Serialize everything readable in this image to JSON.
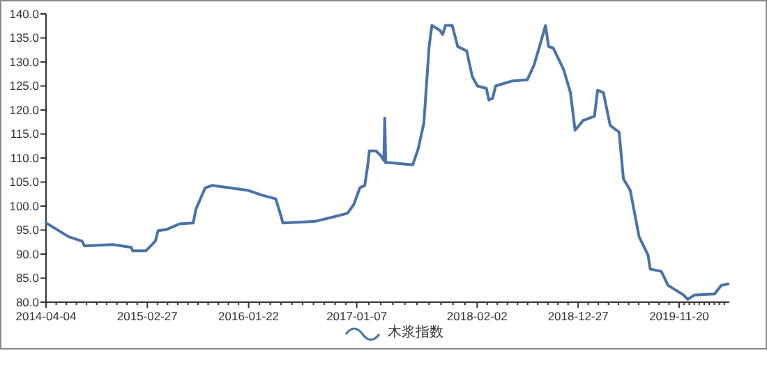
{
  "chart_data": {
    "type": "line",
    "x": [
      "2014-04-04",
      "2014-06-17",
      "2014-07-30",
      "2014-08-07",
      "2014-11-06",
      "2015-01-06",
      "2015-01-10",
      "2015-02-23",
      "2015-03-25",
      "2015-04-03",
      "2015-04-29",
      "2015-06-12",
      "2015-07-26",
      "2015-08-04",
      "2015-09-03",
      "2015-09-25",
      "2015-11-21",
      "2016-01-18",
      "2016-03-04",
      "2016-04-19",
      "2016-05-08",
      "2016-05-12",
      "2016-08-23",
      "2016-10-08",
      "2016-12-08",
      "2016-12-29",
      "2017-01-17",
      "2017-02-02",
      "2017-02-12",
      "2017-02-17",
      "2017-03-10",
      "2017-03-26",
      "2017-04-05",
      "2017-04-08",
      "2017-04-11",
      "2017-04-14",
      "2017-07-08",
      "2017-07-26",
      "2017-08-13",
      "2017-08-30",
      "2017-09-08",
      "2017-10-04",
      "2017-10-13",
      "2017-10-22",
      "2017-11-13",
      "2017-12-01",
      "2017-12-30",
      "2018-01-17",
      "2018-02-03",
      "2018-03-04",
      "2018-03-12",
      "2018-03-24",
      "2018-04-03",
      "2018-05-24",
      "2018-07-15",
      "2018-08-06",
      "2018-08-28",
      "2018-09-12",
      "2018-09-22",
      "2018-10-07",
      "2018-11-10",
      "2018-12-02",
      "2018-12-17",
      "2019-01-12",
      "2019-02-18",
      "2019-02-28",
      "2019-03-19",
      "2019-04-10",
      "2019-05-09",
      "2019-05-23",
      "2019-06-14",
      "2019-07-13",
      "2019-08-11",
      "2019-08-18",
      "2019-09-23",
      "2019-10-15",
      "2019-12-04",
      "2019-12-18",
      "2020-01-09",
      "2020-03-14",
      "2020-04-05",
      "2020-04-27"
    ],
    "series": [
      {
        "name": "木浆指数",
        "color": "#4a72a8",
        "values": [
          96.5,
          93.6,
          92.7,
          91.7,
          92.0,
          91.4,
          90.7,
          90.7,
          92.7,
          94.9,
          95.1,
          96.3,
          96.5,
          99.4,
          103.8,
          104.3,
          103.8,
          103.3,
          102.3,
          101.5,
          97.5,
          96.5,
          96.8,
          97.5,
          98.5,
          100.4,
          103.8,
          104.3,
          108.6,
          111.5,
          111.5,
          110.5,
          109.5,
          118.3,
          109.0,
          109.1,
          108.6,
          112.0,
          117.3,
          133.2,
          137.6,
          136.6,
          135.7,
          137.6,
          137.6,
          133.2,
          132.3,
          127.0,
          125.0,
          124.5,
          122.1,
          122.4,
          125.0,
          126.0,
          126.3,
          129.4,
          134.2,
          137.6,
          133.2,
          132.9,
          128.4,
          123.6,
          115.8,
          117.8,
          118.7,
          124.1,
          123.6,
          116.8,
          115.4,
          105.7,
          103.3,
          93.6,
          89.8,
          86.9,
          86.4,
          83.5,
          81.5,
          80.6,
          81.5,
          81.7,
          83.5,
          83.8
        ]
      }
    ],
    "xlim": [
      "2014-04-04",
      "2020-05-01"
    ],
    "xticks": [
      {
        "value": "2014-04-04",
        "label": "2014-04-04"
      },
      {
        "value": "2015-02-27",
        "label": "2015-02-27"
      },
      {
        "value": "2016-01-22",
        "label": "2016-01-22"
      },
      {
        "value": "2017-01-07",
        "label": "2017-01-07"
      },
      {
        "value": "2018-02-02",
        "label": "2018-02-02"
      },
      {
        "value": "2018-12-27",
        "label": "2018-12-27"
      },
      {
        "value": "2019-11-20",
        "label": "2019-11-20"
      }
    ],
    "ylim": [
      80,
      140
    ],
    "yticks": [
      {
        "value": 80,
        "label": "80.0"
      },
      {
        "value": 85,
        "label": "85.0"
      },
      {
        "value": 90,
        "label": "90.0"
      },
      {
        "value": 95,
        "label": "95.0"
      },
      {
        "value": 100,
        "label": "100.0"
      },
      {
        "value": 105,
        "label": "105.0"
      },
      {
        "value": 110,
        "label": "110.0"
      },
      {
        "value": 115,
        "label": "115.0"
      },
      {
        "value": 120,
        "label": "120.0"
      },
      {
        "value": 125,
        "label": "125.0"
      },
      {
        "value": 130,
        "label": "130.0"
      },
      {
        "value": 135,
        "label": "135.0"
      },
      {
        "value": 140,
        "label": "140.0"
      }
    ],
    "grid": false,
    "legend": "bottom",
    "marker": "none",
    "line_style": "solid"
  }
}
